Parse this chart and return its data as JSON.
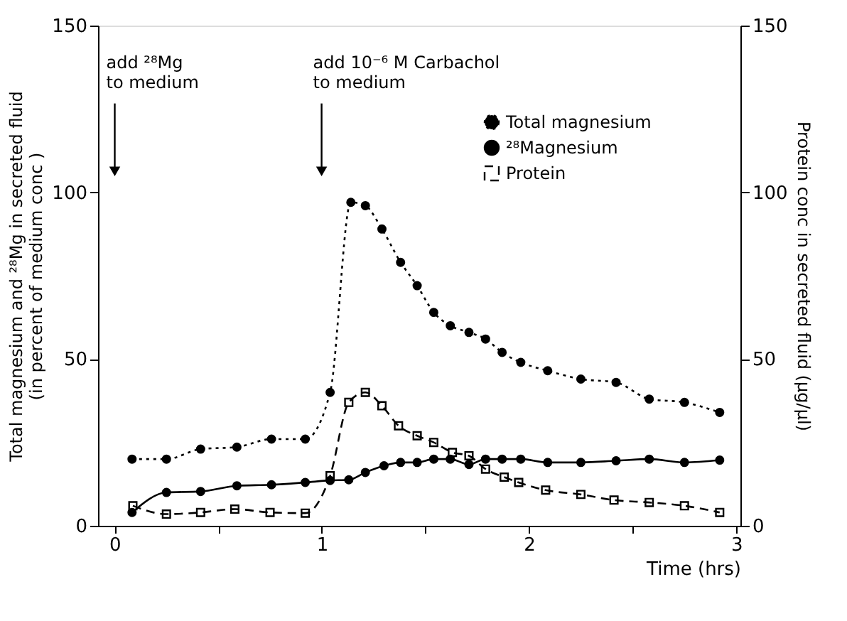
{
  "chart_data": {
    "type": "line",
    "xlabel": "Time (hrs)",
    "ylabel": "Total magnesium and ²⁸Mg in secreted fluid\n(in percent of medium conc )",
    "y2label": "Protein conc in secreted fluid (µg/µl)",
    "xlim": [
      -0.08,
      3.02
    ],
    "xticks": [
      0,
      {
        "value": 0.5,
        "label": null
      },
      1,
      {
        "value": 1.5,
        "label": null
      },
      2,
      {
        "value": 2.5,
        "label": null
      },
      3
    ],
    "ylim": [
      0,
      150
    ],
    "yticks": [
      0,
      50,
      100,
      150
    ],
    "y2lim": [
      0,
      150
    ],
    "y2ticks": [
      0,
      50,
      100,
      150
    ],
    "grid": false,
    "legend": "top right",
    "annotations": [
      "add ²⁸Mg\nto medium",
      "add 10⁻⁶ M Carbachol\nto medium"
    ],
    "series": [
      {
        "name": "Total magnesium",
        "color": "#000000",
        "marker": "circle",
        "line_style": "dotted",
        "x": [
          0.084,
          0.25,
          0.415,
          0.59,
          0.757,
          0.92,
          1.04,
          1.14,
          1.21,
          1.29,
          1.38,
          1.46,
          1.54,
          1.62,
          1.71,
          1.79,
          1.87,
          1.96,
          2.09,
          2.25,
          2.42,
          2.58,
          2.75,
          2.92
        ],
        "values": [
          20,
          20,
          23,
          23.6,
          26,
          26,
          40,
          97,
          96,
          89,
          79,
          72,
          64,
          60,
          58,
          56,
          52,
          49,
          46.5,
          44,
          43,
          38,
          37,
          34
        ]
      },
      {
        "name": "²⁸Magnesium",
        "color": "#000000",
        "marker": "circle",
        "line_style": "solid",
        "x": [
          0.084,
          0.25,
          0.415,
          0.59,
          0.757,
          0.92,
          1.04,
          1.13,
          1.21,
          1.3,
          1.38,
          1.46,
          1.54,
          1.62,
          1.71,
          1.79,
          1.87,
          1.96,
          2.09,
          2.25,
          2.42,
          2.58,
          2.75,
          2.92
        ],
        "values": [
          4,
          10,
          10.3,
          12,
          12.3,
          13,
          13.6,
          13.8,
          16,
          18,
          19,
          19,
          20,
          20,
          18.4,
          20,
          20,
          20,
          19,
          19,
          19.5,
          20,
          19,
          19.7
        ]
      },
      {
        "name": "Protein",
        "color": "#000000",
        "marker": "square",
        "line_style": "dashed",
        "axis": "y2",
        "x": [
          0.088,
          0.25,
          0.415,
          0.58,
          0.75,
          0.92,
          1.04,
          1.13,
          1.21,
          1.29,
          1.37,
          1.46,
          1.54,
          1.63,
          1.71,
          1.79,
          1.88,
          1.95,
          2.08,
          2.25,
          2.41,
          2.58,
          2.75,
          2.92
        ],
        "values": [
          6,
          3.5,
          4,
          5,
          4,
          3.8,
          15,
          37,
          40,
          36,
          30,
          27,
          25,
          22,
          21,
          17,
          14.6,
          13,
          10.7,
          9.4,
          7.7,
          7,
          6,
          4
        ]
      }
    ]
  }
}
